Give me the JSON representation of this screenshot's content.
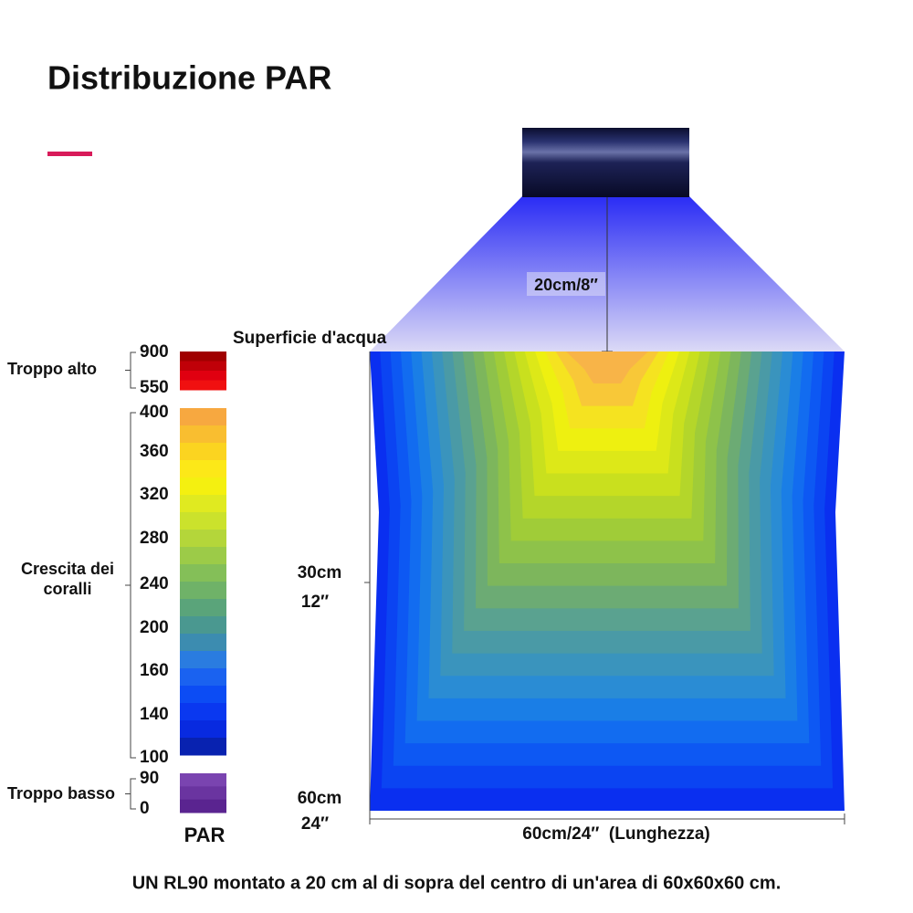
{
  "header": {
    "title": "Distribuzione PAR"
  },
  "fixture": {
    "distance_label": "20cm/8″"
  },
  "surface_label": "Superficie d'acqua",
  "legend": {
    "groups": [
      {
        "label_lines": [
          "Troppo alto"
        ],
        "ticks": [
          900,
          550
        ]
      },
      {
        "label_lines": [
          "Crescita dei",
          "coralli"
        ],
        "ticks": [
          400,
          360,
          320,
          280,
          240,
          200,
          160,
          140,
          100
        ]
      },
      {
        "label_lines": [
          "Troppo basso"
        ],
        "ticks": [
          90,
          0
        ]
      }
    ],
    "unit_label": "PAR"
  },
  "depth_labels": [
    {
      "cm": "30cm",
      "inch": "12″"
    },
    {
      "cm": "60cm",
      "inch": "24″"
    }
  ],
  "length_label": "60cm/24″  (Lunghezza)",
  "caption": "UN RL90 montato a 20 cm al di sopra del centro di un'area di 60x60x60 cm."
}
